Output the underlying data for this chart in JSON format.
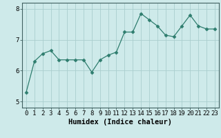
{
  "x": [
    0,
    1,
    2,
    3,
    4,
    5,
    6,
    7,
    8,
    9,
    10,
    11,
    12,
    13,
    14,
    15,
    16,
    17,
    18,
    19,
    20,
    21,
    22,
    23
  ],
  "y": [
    5.3,
    6.3,
    6.55,
    6.65,
    6.35,
    6.35,
    6.35,
    6.35,
    5.95,
    6.35,
    6.5,
    6.6,
    7.25,
    7.25,
    7.85,
    7.65,
    7.45,
    7.15,
    7.1,
    7.45,
    7.8,
    7.45,
    7.35,
    7.35
  ],
  "line_color": "#2e7d6e",
  "marker": "D",
  "marker_size": 2.5,
  "bg_color": "#ceeaea",
  "grid_color": "#aacece",
  "xlabel": "Humidex (Indice chaleur)",
  "ylim": [
    4.8,
    8.2
  ],
  "xlim": [
    -0.5,
    23.5
  ],
  "yticks": [
    5,
    6,
    7,
    8
  ],
  "xticks": [
    0,
    1,
    2,
    3,
    4,
    5,
    6,
    7,
    8,
    9,
    10,
    11,
    12,
    13,
    14,
    15,
    16,
    17,
    18,
    19,
    20,
    21,
    22,
    23
  ],
  "tick_fontsize": 6.5,
  "xlabel_fontsize": 7.5,
  "spine_color": "#406060"
}
